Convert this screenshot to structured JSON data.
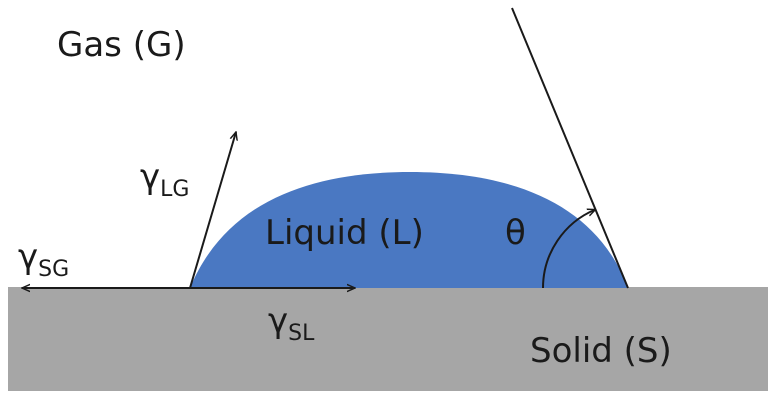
{
  "labels": {
    "gas": "Gas (G)",
    "liquid": "Liquid (L)",
    "solid": "Solid (S)",
    "theta": "θ"
  },
  "tensions": [
    {
      "symbol": "γ",
      "subscript": "LG"
    },
    {
      "symbol": "γ",
      "subscript": "SG"
    },
    {
      "symbol": "γ",
      "subscript": "SL"
    }
  ]
}
